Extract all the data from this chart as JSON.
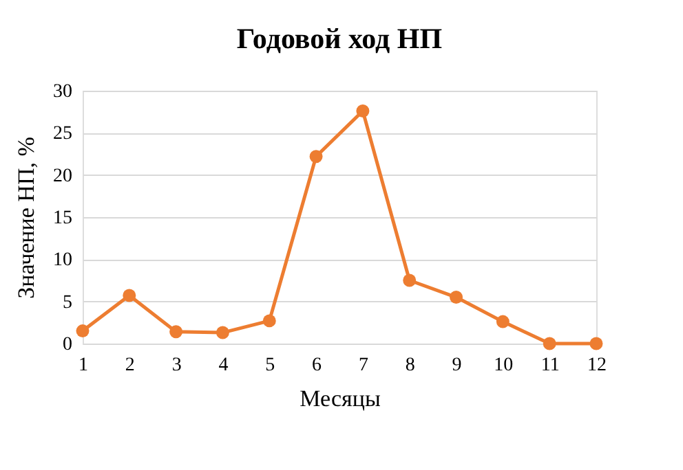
{
  "chart_data": {
    "type": "line",
    "title": "Годовой ход НП",
    "xlabel": "Месяцы",
    "ylabel": "Значение НП, %",
    "x": [
      1,
      2,
      3,
      4,
      5,
      6,
      7,
      8,
      9,
      10,
      11,
      12
    ],
    "series": [
      {
        "color": "#ed7d31",
        "values": [
          1.5,
          5.7,
          1.4,
          1.3,
          2.7,
          22.2,
          27.6,
          7.5,
          5.5,
          2.6,
          0,
          0
        ]
      }
    ],
    "xlim": [
      1,
      12
    ],
    "xticks": [
      1,
      2,
      3,
      4,
      5,
      6,
      7,
      8,
      9,
      10,
      11,
      12
    ],
    "ylim": [
      0,
      30
    ],
    "yticks": [
      0,
      5,
      10,
      15,
      20,
      25,
      30
    ],
    "grid": "y",
    "marker": "circle",
    "line_style": "solid",
    "legend": false
  }
}
